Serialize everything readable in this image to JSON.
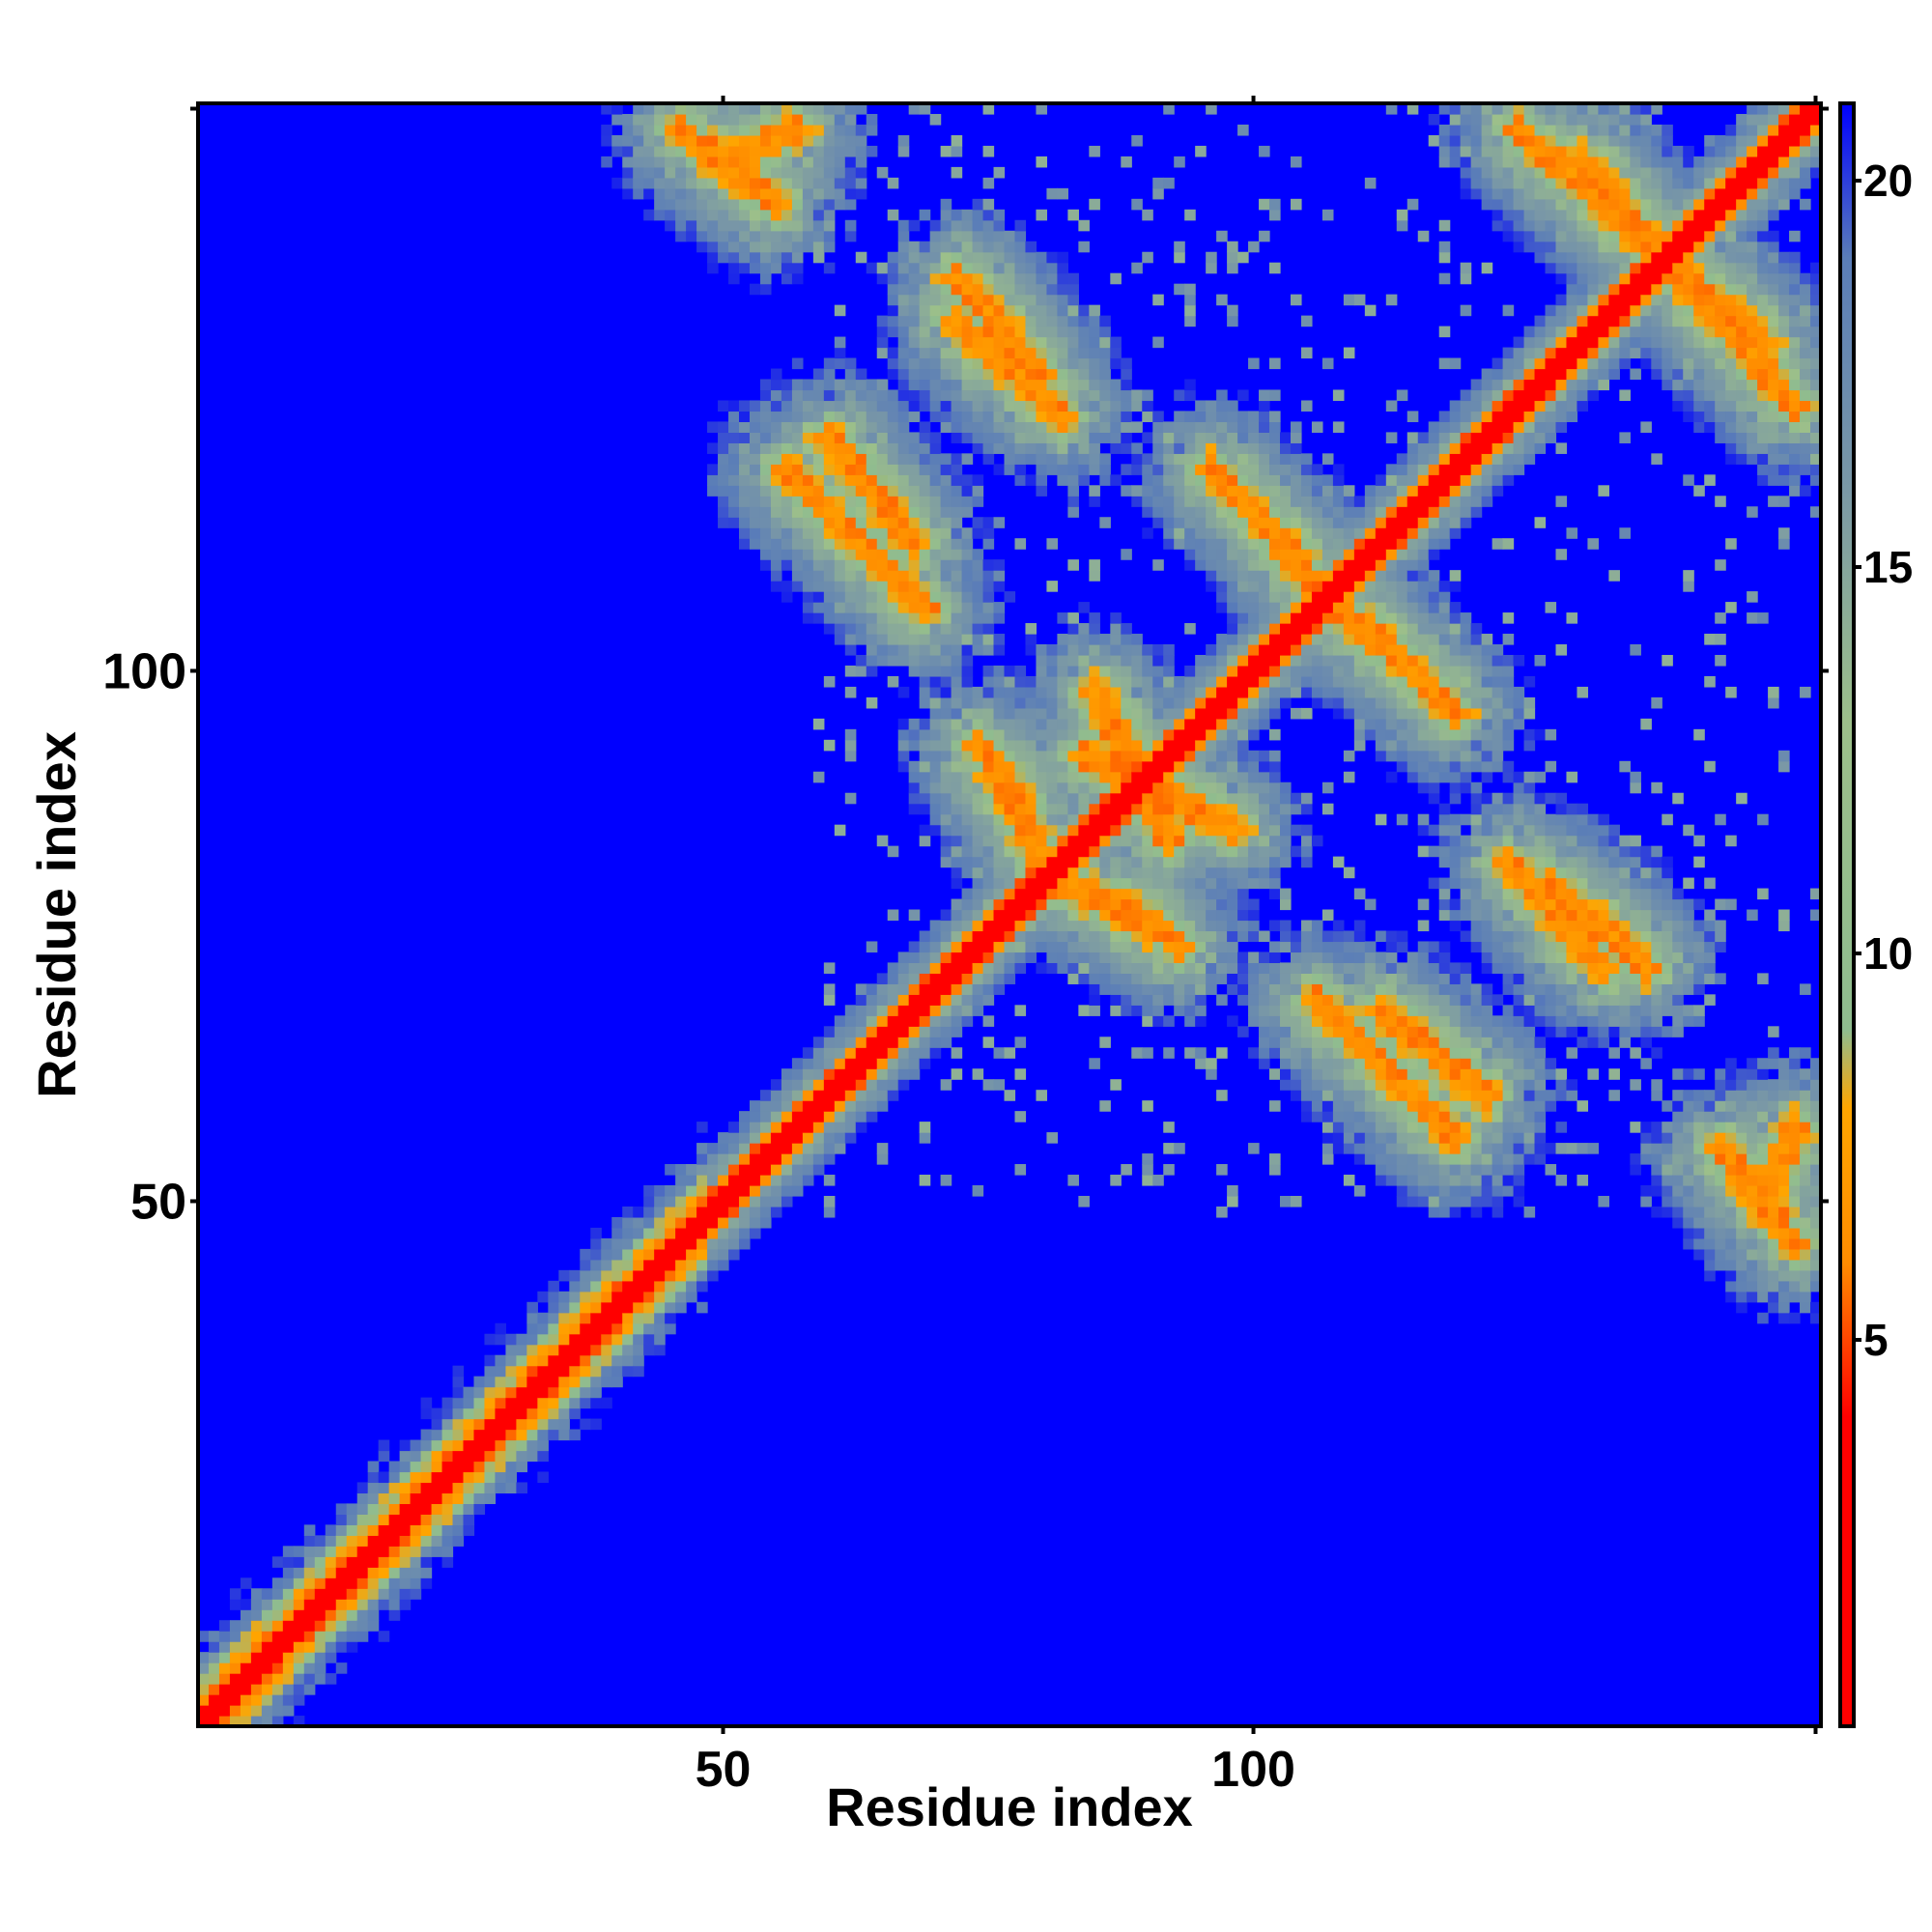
{
  "chart_data": {
    "type": "heatmap",
    "title": "",
    "xlabel": "Residue index",
    "ylabel": "Residue index",
    "xlim": [
      1,
      153
    ],
    "ylim": [
      1,
      153
    ],
    "x_ticks": [
      50,
      100
    ],
    "y_ticks": [
      50,
      100
    ],
    "colorbar": {
      "ticks": [
        5,
        10,
        15,
        20
      ],
      "range": [
        0,
        21
      ],
      "colors": [
        {
          "value": 0,
          "color": "#ff0000"
        },
        {
          "value": 4,
          "color": "#ff0000"
        },
        {
          "value": 6,
          "color": "#ff8c00"
        },
        {
          "value": 8,
          "color": "#ffa500"
        },
        {
          "value": 9,
          "color": "#8fbc8f"
        },
        {
          "value": 13,
          "color": "#9cbf8a"
        },
        {
          "value": 16,
          "color": "#7a98a6"
        },
        {
          "value": 19,
          "color": "#5a7db8"
        },
        {
          "value": 21,
          "color": "#0000ff"
        }
      ]
    },
    "description_of_values": "Symmetric residue-residue distance map; diagonal band near 0, cross-strand contacts 5-10, background at maximum (blue)",
    "features": {
      "diagonal_band_width": 2,
      "lower_helix_region": [
        1,
        48
      ],
      "contact_lines": [
        {
          "from": [
            51,
            148
          ],
          "to": [
            57,
            151
          ]
        },
        {
          "from": [
            72,
            133
          ],
          "to": [
            82,
            124
          ]
        },
        {
          "from": [
            56,
            119
          ],
          "to": [
            69,
            106
          ]
        },
        {
          "from": [
            85,
            98
          ],
          "to": [
            92,
            84
          ]
        },
        {
          "from": [
            76,
            90
          ],
          "to": [
            81,
            80
          ]
        },
        {
          "from": [
            88,
            78
          ],
          "to": [
            93,
            74
          ]
        },
        {
          "from": [
            103,
            111
          ],
          "to": [
            119,
            96
          ]
        },
        {
          "from": [
            112,
            68
          ],
          "to": [
            122,
            60
          ]
        },
        {
          "from": [
            128,
            80
          ],
          "to": [
            137,
            72
          ]
        },
        {
          "from": [
            131,
            148
          ],
          "to": [
            151,
            125
          ]
        },
        {
          "from": [
            144,
            55
          ],
          "to": [
            151,
            46
          ]
        }
      ]
    }
  }
}
